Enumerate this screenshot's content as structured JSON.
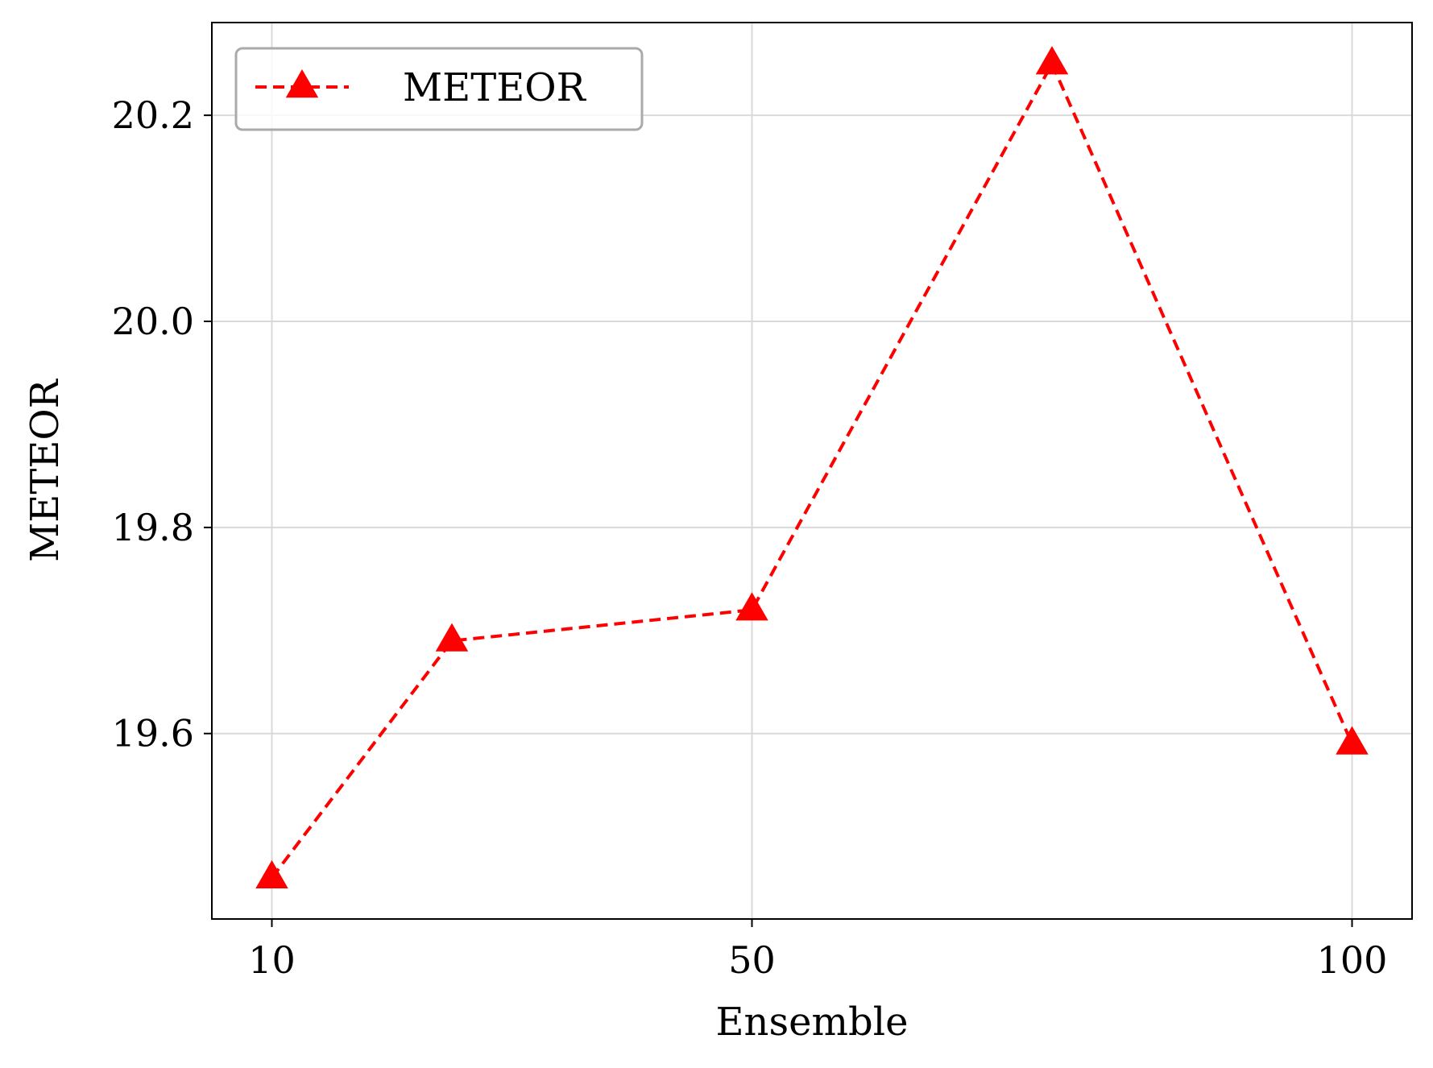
{
  "chart_data": {
    "type": "line",
    "title": "",
    "xlabel": "Ensemble",
    "ylabel": "METEOR",
    "x_ticks": [
      {
        "value": 10,
        "label": "10"
      },
      {
        "value": 50,
        "label": "50"
      },
      {
        "value": 100,
        "label": "100"
      }
    ],
    "y_ticks": [
      {
        "value": 19.6,
        "label": "19.6"
      },
      {
        "value": 19.8,
        "label": "19.8"
      },
      {
        "value": 20.0,
        "label": "20.0"
      },
      {
        "value": 20.2,
        "label": "20.2"
      }
    ],
    "xlim": [
      5,
      105
    ],
    "ylim": [
      19.42,
      20.29
    ],
    "grid": true,
    "legend_position": "upper-left",
    "series": [
      {
        "name": "METEOR",
        "color": "#ff0000",
        "line_style": "dashed",
        "marker": "triangle-up",
        "points": [
          {
            "x": 10,
            "y": 19.46
          },
          {
            "x": 25,
            "y": 19.69
          },
          {
            "x": 50,
            "y": 19.72
          },
          {
            "x": 75,
            "y": 20.25
          },
          {
            "x": 100,
            "y": 19.59
          }
        ]
      }
    ]
  }
}
